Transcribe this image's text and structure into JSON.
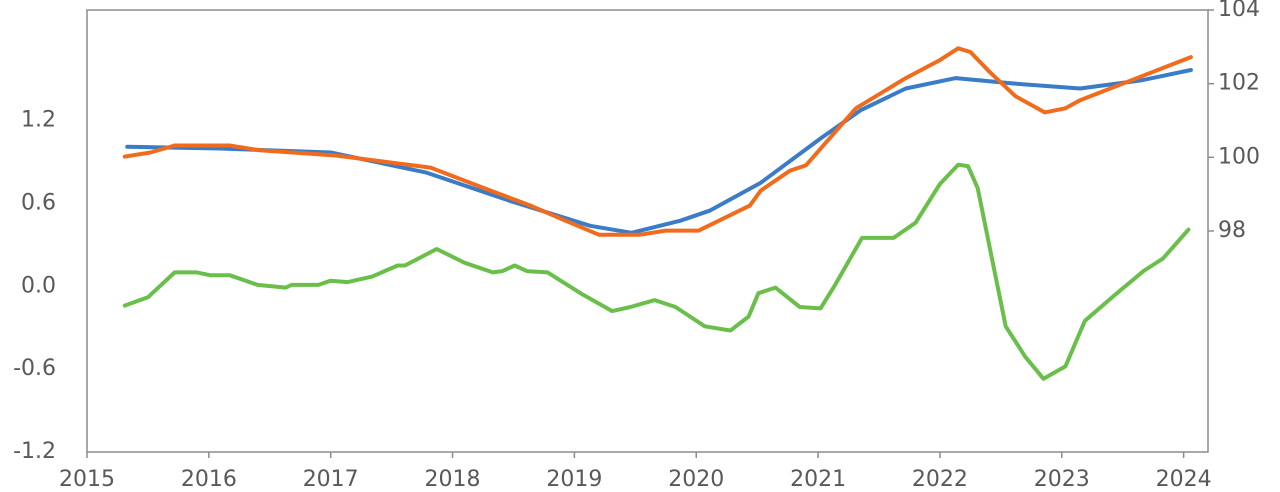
{
  "chart_data": {
    "type": "line",
    "xlim": [
      2015,
      2024.2
    ],
    "xticks": [
      2015,
      2016,
      2017,
      2018,
      2019,
      2020,
      2021,
      2022,
      2023,
      2024
    ],
    "ylim": [
      -1.2,
      2.0
    ],
    "yticks": [
      -1.2,
      -0.6,
      {
        "value": 0,
        "label": "0.0"
      },
      0.6,
      1.2
    ],
    "y2lim": [
      92,
      104
    ],
    "y2ticks": [
      98,
      100,
      102,
      104
    ],
    "series": [
      {
        "color": "#6abf4b",
        "x": [
          2015.31,
          2015.5,
          2015.72,
          2015.9,
          2016.01,
          2016.17,
          2016.4,
          2016.63,
          2016.68,
          2016.9,
          2017.0,
          2017.14,
          2017.34,
          2017.55,
          2017.61,
          2017.87,
          2018.1,
          2018.33,
          2018.41,
          2018.51,
          2018.61,
          2018.78,
          2019.05,
          2019.31,
          2019.46,
          2019.66,
          2019.83,
          2020.07,
          2020.28,
          2020.43,
          2020.51,
          2020.65,
          2020.85,
          2021.02,
          2021.14,
          2021.36,
          2021.62,
          2021.8,
          2022.0,
          2022.15,
          2022.23,
          2022.31,
          2022.54,
          2022.7,
          2022.85,
          2023.03,
          2023.19,
          2023.44,
          2023.67,
          2023.83,
          2024.04
        ],
        "values": [
          -0.14,
          -0.08,
          0.1,
          0.1,
          0.08,
          0.08,
          0.01,
          -0.01,
          0.01,
          0.01,
          0.04,
          0.03,
          0.07,
          0.15,
          0.15,
          0.27,
          0.17,
          0.1,
          0.11,
          0.15,
          0.11,
          0.1,
          -0.05,
          -0.18,
          -0.15,
          -0.1,
          -0.15,
          -0.29,
          -0.32,
          -0.22,
          -0.05,
          -0.01,
          -0.15,
          -0.16,
          0.01,
          0.35,
          0.35,
          0.46,
          0.74,
          0.88,
          0.87,
          0.71,
          -0.29,
          -0.51,
          -0.67,
          -0.58,
          -0.25,
          -0.06,
          0.11,
          0.2,
          0.41
        ]
      },
      {
        "color": "#3a7cc8",
        "axis": "y2",
        "x": [
          2015.33,
          2016.09,
          2017.0,
          2017.78,
          2018.47,
          2019.13,
          2019.47,
          2019.87,
          2020.11,
          2020.53,
          2021.02,
          2021.35,
          2021.72,
          2022.13,
          2022.58,
          2023.15,
          2023.65,
          2024.06
        ],
        "values": [
          100.29,
          100.24,
          100.13,
          99.59,
          98.82,
          98.14,
          97.95,
          98.28,
          98.55,
          99.31,
          100.51,
          101.28,
          101.87,
          102.15,
          102.01,
          101.87,
          102.09,
          102.37
        ]
      },
      {
        "color": "#f26b1d",
        "axis": "y2",
        "x": [
          2015.31,
          2015.52,
          2015.72,
          2016.17,
          2016.42,
          2017.04,
          2017.82,
          2018.31,
          2018.64,
          2018.89,
          2019.2,
          2019.54,
          2019.75,
          2020.02,
          2020.44,
          2020.53,
          2020.77,
          2020.9,
          2021.31,
          2021.72,
          2022.0,
          2022.15,
          2022.25,
          2022.41,
          2022.62,
          2022.86,
          2023.03,
          2023.15,
          2024.06
        ],
        "values": [
          100.02,
          100.13,
          100.32,
          100.32,
          100.19,
          100.05,
          99.72,
          99.1,
          98.69,
          98.33,
          97.9,
          97.9,
          98.01,
          98.01,
          98.69,
          99.1,
          99.64,
          99.78,
          101.33,
          102.15,
          102.64,
          102.96,
          102.86,
          102.31,
          101.66,
          101.22,
          101.33,
          101.55,
          102.72
        ]
      }
    ]
  }
}
